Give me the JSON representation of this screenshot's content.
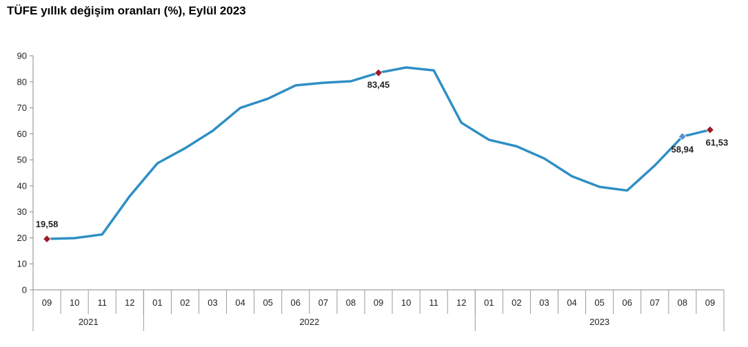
{
  "chart_data": {
    "type": "line",
    "title": "TÜFE yıllık değişim oranları (%), Eylül 2023",
    "x": [
      "09",
      "10",
      "11",
      "12",
      "01",
      "02",
      "03",
      "04",
      "05",
      "06",
      "07",
      "08",
      "09",
      "10",
      "11",
      "12",
      "01",
      "02",
      "03",
      "04",
      "05",
      "06",
      "07",
      "08",
      "09"
    ],
    "years": [
      {
        "label": "2021",
        "from": 0,
        "to": 3
      },
      {
        "label": "2022",
        "from": 4,
        "to": 15
      },
      {
        "label": "2023",
        "from": 16,
        "to": 24
      }
    ],
    "series": [
      {
        "values": [
          19.58,
          19.89,
          21.31,
          36.08,
          48.69,
          54.44,
          61.14,
          69.97,
          73.5,
          78.62,
          79.6,
          80.21,
          83.45,
          85.51,
          84.39,
          64.27,
          57.68,
          55.18,
          50.51,
          43.68,
          39.59,
          38.21,
          47.83,
          58.94,
          61.53
        ],
        "color": "#2e8fc4"
      }
    ],
    "markers": [
      {
        "index": 0,
        "color": "#9e1a2a"
      },
      {
        "index": 12,
        "color": "#9e1a2a"
      },
      {
        "index": 23,
        "color": "#5b8fd0"
      },
      {
        "index": 24,
        "color": "#9e1a2a"
      }
    ],
    "data_labels": [
      {
        "index": 0,
        "text": "19,58"
      },
      {
        "index": 12,
        "text": "83,45"
      },
      {
        "index": 23,
        "text": "58,94"
      },
      {
        "index": 24,
        "text": "61,53"
      }
    ],
    "ylim": [
      0,
      90
    ],
    "yticks": [
      0,
      10,
      20,
      30,
      40,
      50,
      60,
      70,
      80,
      90
    ],
    "grid": false,
    "legend": "none"
  }
}
